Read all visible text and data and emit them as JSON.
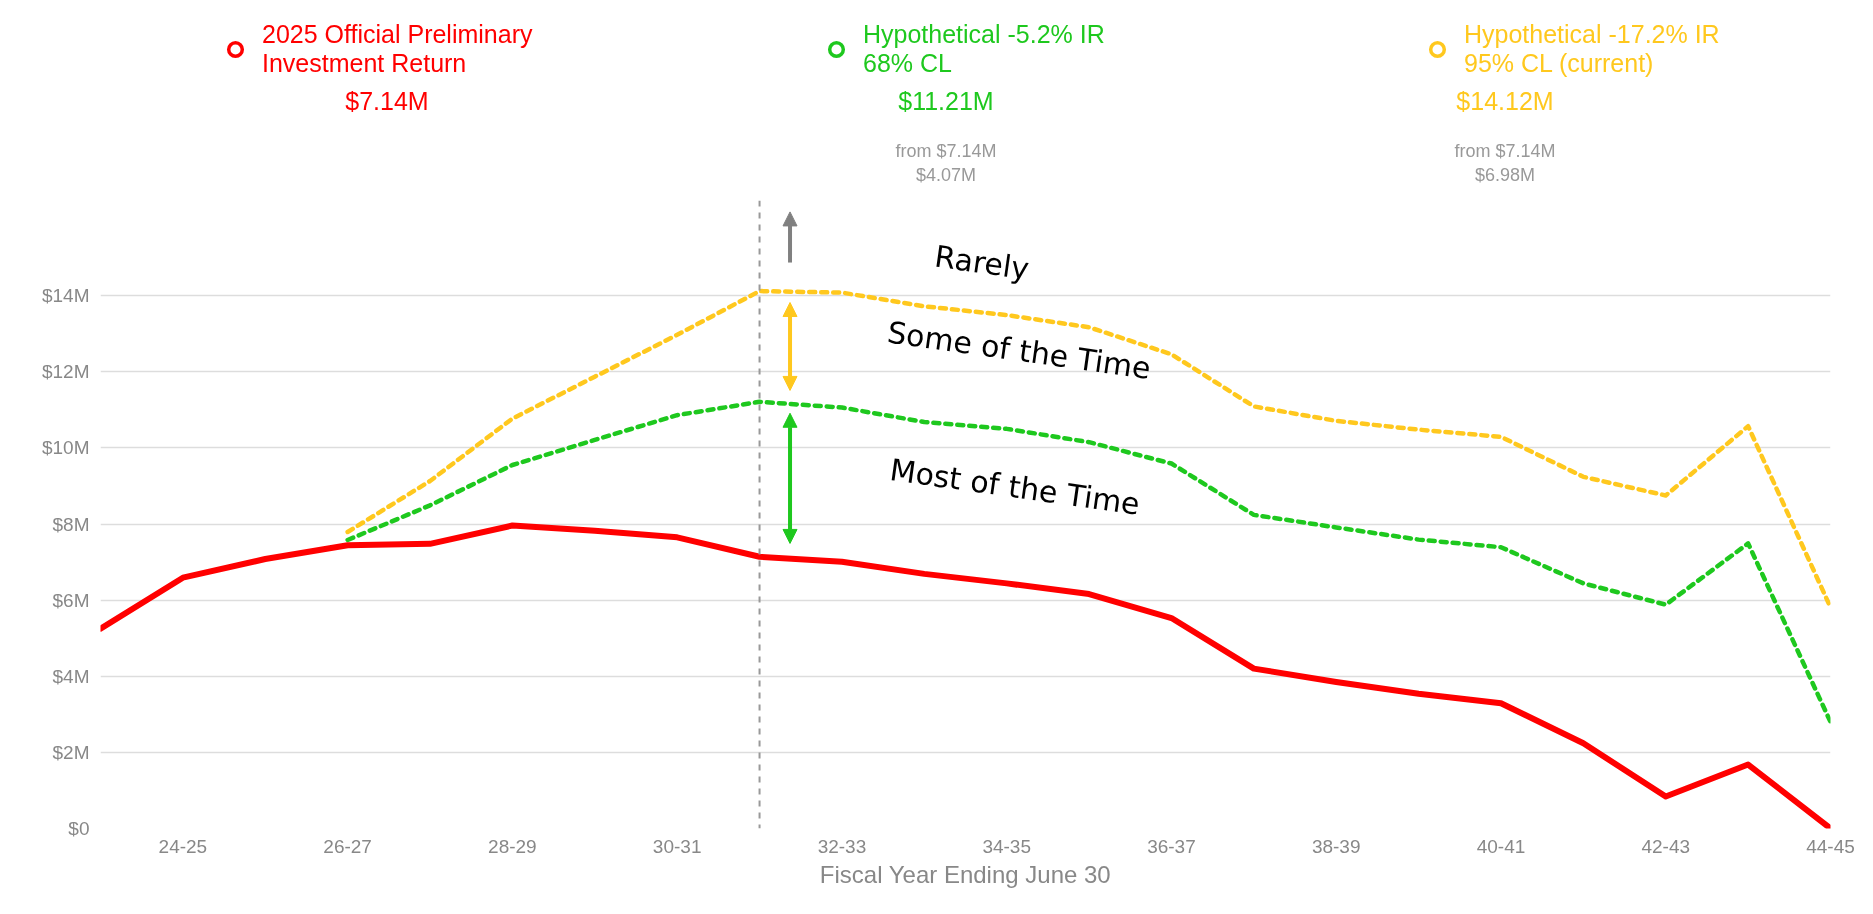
{
  "chart_data": {
    "type": "line",
    "xlabel": "Fiscal Year Ending June 30",
    "categories": [
      null,
      "24-25",
      null,
      "26-27",
      null,
      "28-29",
      null,
      "30-31",
      null,
      "32-33",
      null,
      "34-35",
      null,
      "36-37",
      null,
      "38-39",
      null,
      "40-41",
      null,
      "42-43",
      null,
      "44-45"
    ],
    "ylim": [
      0,
      16.5
    ],
    "yticks": [
      {
        "value": 0,
        "label": "$0"
      },
      {
        "value": 2,
        "label": "$2M"
      },
      {
        "value": 4,
        "label": "$4M"
      },
      {
        "value": 6,
        "label": "$6M"
      },
      {
        "value": 8,
        "label": "$8M"
      },
      {
        "value": 10,
        "label": "$10M"
      },
      {
        "value": 12,
        "label": "$12M"
      },
      {
        "value": 14,
        "label": "$14M"
      }
    ],
    "grid": "y",
    "legend": "top",
    "series": [
      {
        "name": "2025 Official Preliminary\nInvestment Return",
        "color": "#ff0000",
        "line_style": "solid",
        "values": [
          5.25,
          6.59,
          7.08,
          7.44,
          7.48,
          7.96,
          7.82,
          7.65,
          7.14,
          7.01,
          6.69,
          6.44,
          6.16,
          5.53,
          4.2,
          3.85,
          3.54,
          3.29,
          2.24,
          0.84,
          1.68,
          0
        ]
      },
      {
        "name": "Hypothetical -5.2% IR\n68% CL",
        "color": "#1ec81e",
        "line_style": "dashed",
        "values": [
          null,
          null,
          null,
          7.58,
          8.49,
          9.55,
          10.21,
          10.86,
          11.21,
          11.06,
          10.68,
          10.5,
          10.15,
          9.59,
          8.24,
          7.91,
          7.59,
          7.39,
          6.44,
          5.88,
          7.49,
          2.8
        ]
      },
      {
        "name": "Hypothetical -17.2% IR\n95% CL (current)",
        "color": "#ffc81e",
        "line_style": "dashed",
        "values": [
          null,
          null,
          null,
          7.79,
          9.13,
          10.77,
          11.87,
          12.97,
          14.12,
          14.08,
          13.72,
          13.49,
          13.17,
          12.46,
          11.09,
          10.71,
          10.48,
          10.29,
          9.24,
          8.75,
          10.57,
          5.81
        ]
      }
    ],
    "annotations": [
      "$7.14M",
      "$11.21M",
      "$14.12M",
      "from $7.14M\n$4.07M",
      "from $7.14M\n$6.98M",
      "Rarely",
      "Some of the Time",
      "Most of the Time"
    ]
  }
}
